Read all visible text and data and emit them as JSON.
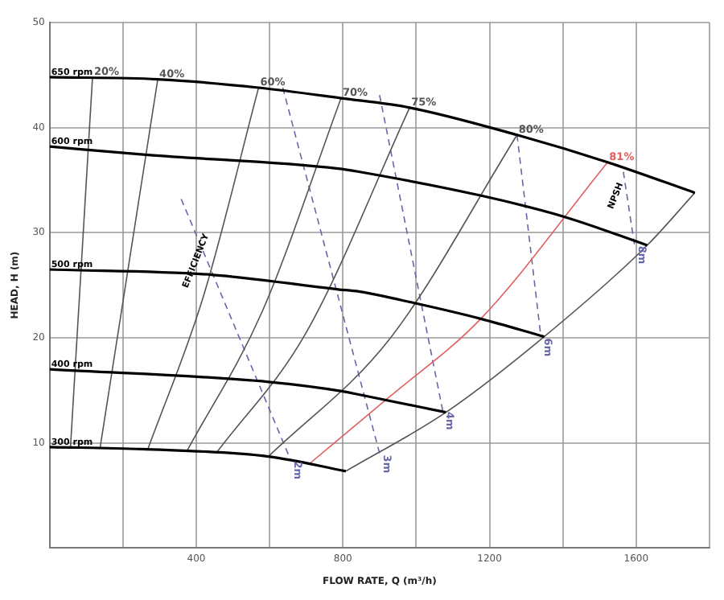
{
  "chart_data": {
    "type": "line",
    "xlabel": "FLOW RATE, Q (m³/h)",
    "ylabel": "HEAD, H (m)",
    "xlim": [
      0,
      1800
    ],
    "ylim": [
      0,
      50
    ],
    "xticks": [
      {
        "value": 0,
        "label": null
      },
      {
        "value": 200,
        "label": null
      },
      400,
      {
        "value": 600,
        "label": null
      },
      800,
      {
        "value": 1000,
        "label": null
      },
      1200,
      {
        "value": 1400,
        "label": null
      },
      1600,
      {
        "value": 1800,
        "label": null
      }
    ],
    "yticks": [
      {
        "value": 0,
        "label": null
      },
      10,
      20,
      30,
      40,
      50
    ],
    "grid": true,
    "legend": false,
    "marker": "none",
    "annotations": [
      {
        "text": "EFFICIENCY",
        "x": 430,
        "y": 27.3
      },
      {
        "text": "NPSH",
        "x": 1575,
        "y": 33.5
      }
    ],
    "series": [
      {
        "name": "650 rpm",
        "color": "#000000",
        "x": [
          0,
          295,
          570,
          795,
          982,
          1275,
          1522,
          1760
        ],
        "values": [
          44.8,
          44.6,
          43.8,
          42.8,
          41.9,
          39.3,
          36.7,
          33.8
        ]
      },
      {
        "name": "600 rpm",
        "color": "#000000",
        "x": [
          0,
          268,
          787,
          843,
          1180,
          1405,
          1630
        ],
        "values": [
          38.2,
          37.4,
          36.1,
          35.8,
          33.5,
          31.5,
          28.8
        ]
      },
      {
        "name": "500 rpm",
        "color": "#000000",
        "x": [
          0,
          441,
          787,
          843,
          995,
          1176,
          1349
        ],
        "values": [
          26.5,
          26,
          24.6,
          24.4,
          23.3,
          21.8,
          20.1
        ]
      },
      {
        "name": "400 rpm",
        "color": "#000000",
        "x": [
          0,
          597,
          800,
          843,
          1081
        ],
        "values": [
          17,
          15.8,
          14.9,
          14.6,
          12.9
        ]
      },
      {
        "name": "300 rpm",
        "color": "#000000",
        "x": [
          0,
          251,
          597,
          808
        ],
        "values": [
          9.6,
          9.4,
          8.7,
          7.3
        ]
      },
      {
        "name": "20%",
        "color": "#555555",
        "x": [
          57,
          117
        ],
        "values": [
          9.6,
          44.8
        ]
      },
      {
        "name": "40%",
        "color": "#555555",
        "x": [
          138,
          295
        ],
        "values": [
          9.6,
          44.6
        ]
      },
      {
        "name": "60%",
        "color": "#555555",
        "x": [
          268,
          420,
          570
        ],
        "values": [
          9.4,
          24,
          43.8
        ]
      },
      {
        "name": "70%",
        "color": "#555555",
        "x": [
          376,
          580,
          795
        ],
        "values": [
          9.3,
          22.5,
          42.8
        ]
      },
      {
        "name": "75%",
        "color": "#555555",
        "x": [
          454,
          700,
          982
        ],
        "values": [
          9,
          20.5,
          41.9
        ]
      },
      {
        "name": "80%",
        "color": "#555555",
        "x": [
          597,
          930,
          1275
        ],
        "values": [
          8.7,
          20,
          39.3
        ]
      },
      {
        "name": "81%",
        "color": "#e06060",
        "x": [
          705,
          921,
          1176,
          1522
        ],
        "values": [
          7.9,
          14.2,
          21.8,
          36.7
        ]
      },
      {
        "color": "#555555",
        "x": [
          808,
          1081,
          1349,
          1630,
          1760
        ],
        "values": [
          7.3,
          12.9,
          20.1,
          28.8,
          33.8
        ]
      },
      {
        "name": "2m",
        "color": "#6666aa",
        "line_style": "dashed",
        "x": [
          359,
          657
        ],
        "values": [
          33.2,
          8.4
        ]
      },
      {
        "name": "3m",
        "color": "#6666aa",
        "line_style": "dashed",
        "x": [
          636,
          900
        ],
        "values": [
          43.8,
          9
        ]
      },
      {
        "name": "4m",
        "color": "#6666aa",
        "line_style": "dashed",
        "x": [
          900,
          1072
        ],
        "values": [
          43.1,
          13.1
        ]
      },
      {
        "name": "6m",
        "color": "#6666aa",
        "line_style": "dashed",
        "x": [
          1275,
          1340
        ],
        "values": [
          39.3,
          20.1
        ]
      },
      {
        "name": "8m",
        "color": "#6666aa",
        "line_style": "dashed",
        "x": [
          1565,
          1595
        ],
        "values": [
          35.8,
          28.9
        ]
      }
    ]
  }
}
